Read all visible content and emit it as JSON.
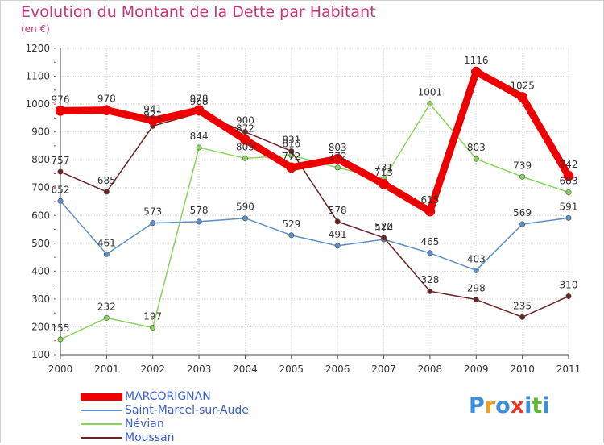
{
  "title": "Evolution du Montant de la Dette par Habitant",
  "subtitle": "(en €)",
  "logo": {
    "letters": [
      "P",
      "r",
      "o",
      "x",
      "i",
      "t",
      "i"
    ],
    "colors": [
      "#3e8fd9",
      "#f0a020",
      "#3e8fd9",
      "#e03b2a",
      "#3e8fd9",
      "#5cb82e",
      "#3e8fd9"
    ]
  },
  "chart_data": {
    "type": "line",
    "title": "Evolution du Montant de la Dette par Habitant",
    "ylabel": "(en €)",
    "xlabel": "",
    "x": [
      "2000",
      "2001",
      "2002",
      "2003",
      "2004",
      "2005",
      "2006",
      "2007",
      "2008",
      "2009",
      "2010",
      "2011"
    ],
    "ylim": [
      100,
      1200
    ],
    "yticks": [
      100,
      200,
      300,
      400,
      500,
      600,
      700,
      800,
      900,
      1000,
      1100,
      1200
    ],
    "grid": true,
    "legend_position": "bottom-left",
    "series": [
      {
        "name": "MARCORIGNAN",
        "color": "#ee0000",
        "values": [
          976,
          978,
          941,
          978,
          872,
          772,
          803,
          713,
          615,
          1116,
          1025,
          742
        ]
      },
      {
        "name": "Saint-Marcel-sur-Aude",
        "color": "#5b8fc7",
        "values": [
          652,
          461,
          573,
          578,
          590,
          529,
          491,
          514,
          465,
          403,
          569,
          591
        ]
      },
      {
        "name": "Névian",
        "color": "#88d45a",
        "values": [
          155,
          232,
          197,
          844,
          805,
          816,
          772,
          731,
          1001,
          803,
          739,
          683
        ]
      },
      {
        "name": "Moussan",
        "color": "#6b2323",
        "values": [
          757,
          685,
          921,
          968,
          900,
          831,
          578,
          520,
          328,
          298,
          235,
          310
        ]
      }
    ]
  }
}
